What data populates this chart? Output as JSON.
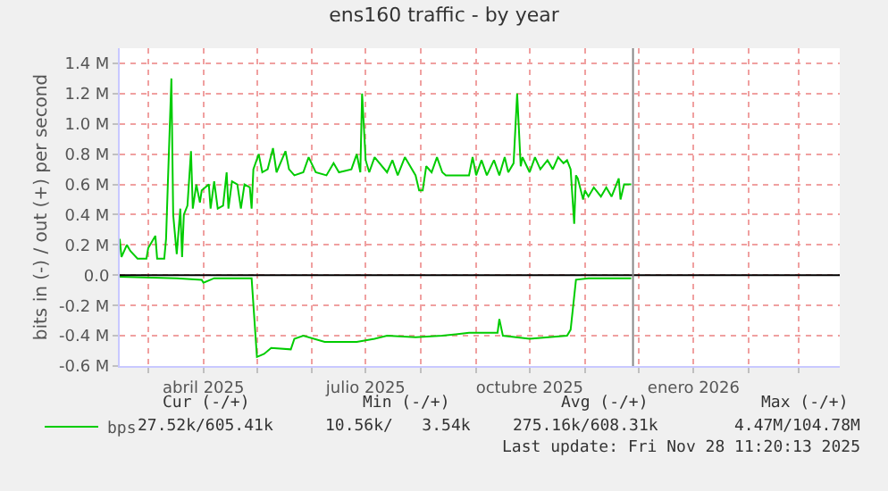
{
  "chart_data": {
    "type": "line",
    "title": "ens160 traffic - by year",
    "ylabel": "bits in (-) / out (+) per second",
    "series": [
      {
        "name": "bps",
        "color": "#00cc00",
        "x": [
          "2025-02-13",
          "2025-02-14",
          "2025-02-17",
          "2025-02-19",
          "2025-02-23",
          "2025-02-28",
          "2025-03-01",
          "2025-03-05",
          "2025-03-06",
          "2025-03-10",
          "2025-03-11",
          "2025-03-12",
          "2025-03-14",
          "2025-03-15",
          "2025-03-17",
          "2025-03-19",
          "2025-03-20",
          "2025-03-21",
          "2025-03-23",
          "2025-03-25",
          "2025-03-26",
          "2025-03-28",
          "2025-03-30",
          "2025-03-31",
          "2025-04-04",
          "2025-04-05",
          "2025-04-07",
          "2025-04-09",
          "2025-04-12",
          "2025-04-14",
          "2025-04-15",
          "2025-04-17",
          "2025-04-20",
          "2025-04-22",
          "2025-04-24",
          "2025-04-27",
          "2025-04-28",
          "2025-04-29",
          "2025-05-02",
          "2025-05-04",
          "2025-05-07",
          "2025-05-10",
          "2025-05-12",
          "2025-05-17",
          "2025-05-19",
          "2025-05-22",
          "2025-05-27",
          "2025-05-30",
          "2025-06-03",
          "2025-06-09",
          "2025-06-13",
          "2025-06-16",
          "2025-06-23",
          "2025-06-26",
          "2025-06-28",
          "2025-06-29",
          "2025-07-01",
          "2025-07-03",
          "2025-07-06",
          "2025-07-13",
          "2025-07-16",
          "2025-07-19",
          "2025-07-23",
          "2025-07-29",
          "2025-07-31",
          "2025-08-02",
          "2025-08-04",
          "2025-08-07",
          "2025-08-10",
          "2025-08-13",
          "2025-08-15",
          "2025-08-28",
          "2025-08-30",
          "2025-09-01",
          "2025-09-04",
          "2025-09-07",
          "2025-09-11",
          "2025-09-14",
          "2025-09-17",
          "2025-09-19",
          "2025-09-22",
          "2025-09-24",
          "2025-09-26",
          "2025-09-27",
          "2025-10-01",
          "2025-10-04",
          "2025-10-07",
          "2025-10-11",
          "2025-10-14",
          "2025-10-17",
          "2025-10-20",
          "2025-10-22",
          "2025-10-24",
          "2025-10-26",
          "2025-10-27",
          "2025-10-28",
          "2025-10-31",
          "2025-11-01",
          "2025-11-03",
          "2025-11-06",
          "2025-11-10",
          "2025-11-13",
          "2025-11-16",
          "2025-11-20",
          "2025-11-21",
          "2025-11-23",
          "2025-11-27"
        ],
        "values": [
          240000,
          120000,
          200000,
          160000,
          110000,
          110000,
          180000,
          260000,
          110000,
          110000,
          240000,
          600000,
          1300000,
          400000,
          140000,
          440000,
          120000,
          400000,
          460000,
          820000,
          440000,
          600000,
          480000,
          560000,
          600000,
          440000,
          620000,
          440000,
          460000,
          680000,
          440000,
          620000,
          600000,
          440000,
          600000,
          580000,
          440000,
          700000,
          800000,
          680000,
          700000,
          840000,
          680000,
          820000,
          700000,
          660000,
          680000,
          780000,
          680000,
          660000,
          740000,
          680000,
          700000,
          800000,
          680000,
          1200000,
          760000,
          680000,
          780000,
          680000,
          760000,
          660000,
          780000,
          660000,
          560000,
          560000,
          720000,
          680000,
          780000,
          680000,
          660000,
          660000,
          780000,
          660000,
          760000,
          660000,
          760000,
          660000,
          780000,
          680000,
          740000,
          1200000,
          720000,
          780000,
          680000,
          780000,
          700000,
          760000,
          700000,
          780000,
          740000,
          760000,
          700000,
          340000,
          660000,
          640000,
          500000,
          560000,
          520000,
          580000,
          520000,
          580000,
          520000,
          640000,
          500000,
          600000,
          600000
        ]
      },
      {
        "color": "#00cc00",
        "x": [
          "2025-02-13",
          "2025-03-17",
          "2025-03-31",
          "2025-04-01",
          "2025-04-07",
          "2025-04-28",
          "2025-05-01",
          "2025-05-05",
          "2025-05-09",
          "2025-05-20",
          "2025-05-22",
          "2025-05-27",
          "2025-06-08",
          "2025-06-26",
          "2025-07-06",
          "2025-07-13",
          "2025-07-29",
          "2025-08-13",
          "2025-08-28",
          "2025-09-13",
          "2025-09-14",
          "2025-09-16",
          "2025-10-01",
          "2025-10-22",
          "2025-10-24",
          "2025-10-27",
          "2025-11-03",
          "2025-11-27"
        ],
        "values": [
          -10000,
          -20000,
          -30000,
          -50000,
          -20000,
          -20000,
          -540000,
          -520000,
          -480000,
          -490000,
          -420000,
          -400000,
          -440000,
          -440000,
          -420000,
          -400000,
          -410000,
          -400000,
          -380000,
          -380000,
          -290000,
          -400000,
          -420000,
          -400000,
          -360000,
          -30000,
          -20000,
          -20000
        ]
      }
    ],
    "xlim": [
      "2025-02-13",
      "2026-03-24"
    ],
    "xticks": [
      {
        "value": "2025-03-01",
        "label": null
      },
      {
        "value": "2025-04-01",
        "label": "abril 2025"
      },
      {
        "value": "2025-05-01",
        "label": null
      },
      {
        "value": "2025-06-01",
        "label": null
      },
      {
        "value": "2025-07-01",
        "label": "julio 2025"
      },
      {
        "value": "2025-08-01",
        "label": null
      },
      {
        "value": "2025-09-01",
        "label": null
      },
      {
        "value": "2025-10-01",
        "label": "octubre 2025"
      },
      {
        "value": "2025-11-01",
        "label": null
      },
      {
        "value": "2025-12-01",
        "label": null
      },
      {
        "value": "2026-01-01",
        "label": "enero 2026"
      },
      {
        "value": "2026-02-01",
        "label": null
      },
      {
        "value": "2026-03-01",
        "label": null
      }
    ],
    "ylim": [
      -600000,
      1500000
    ],
    "yticks": [
      {
        "value": -600000,
        "label": "-0.6 M"
      },
      {
        "value": -400000,
        "label": "-0.4 M"
      },
      {
        "value": -200000,
        "label": "-0.2 M"
      },
      {
        "value": 0,
        "label": "0.0"
      },
      {
        "value": 200000,
        "label": "0.2 M"
      },
      {
        "value": 400000,
        "label": "0.4 M"
      },
      {
        "value": 600000,
        "label": "0.6 M"
      },
      {
        "value": 800000,
        "label": "0.8 M"
      },
      {
        "value": 1000000,
        "label": "1.0 M"
      },
      {
        "value": 1200000,
        "label": "1.2 M"
      },
      {
        "value": 1400000,
        "label": "1.4 M"
      }
    ],
    "ref_lines": [
      {
        "axis": "y",
        "value": 0,
        "label": null,
        "color": "#000000"
      },
      {
        "axis": "x",
        "value": "2025-11-28",
        "label": null,
        "color": "#888888"
      }
    ],
    "grid": true,
    "legend": "bottom left",
    "marker": "none",
    "line_style": "solid",
    "annotations": [
      "Cur (-/+)",
      "Min (-/+)",
      "Avg (-/+)",
      "Max (-/+)",
      "27.52k/605.41k",
      "10.56k/   3.54k",
      "275.16k/608.31k",
      "4.47M/104.78M",
      "Last update: Fri Nov 28 11:20:13 2025"
    ]
  }
}
